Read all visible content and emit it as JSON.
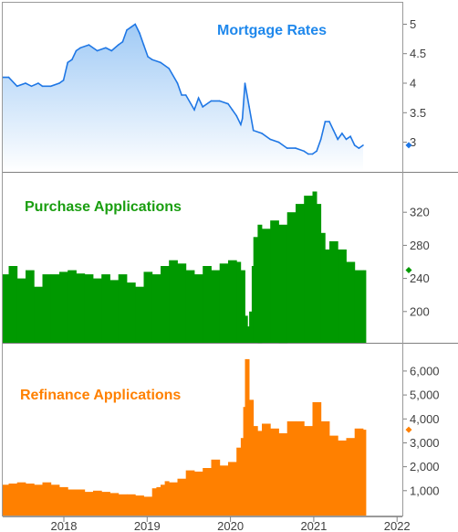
{
  "chart_data": [
    {
      "type": "area",
      "title": "Mortgage Rates",
      "color": "#1f77e5",
      "fill_top": "#9cc8f5",
      "x_start": 2017.33,
      "x_end": 2021.6,
      "ylim": [
        2.7,
        5.1
      ],
      "yticks": [
        3,
        3.5,
        4,
        4.5,
        5
      ],
      "ytick_labels": [
        "3",
        "3.5",
        "4",
        "4.5",
        "5"
      ],
      "latest_marker": 2.95,
      "series": [
        {
          "x": [
            2017.33,
            2017.4,
            2017.5,
            2017.6,
            2017.67,
            2017.75,
            2017.8,
            2017.9,
            2018.0,
            2018.05,
            2018.1,
            2018.15,
            2018.2,
            2018.25,
            2018.35,
            2018.45,
            2018.55,
            2018.62,
            2018.7,
            2018.75,
            2018.8,
            2018.85,
            2018.9,
            2018.95,
            2019.0,
            2019.05,
            2019.1,
            2019.2,
            2019.3,
            2019.4,
            2019.45,
            2019.5,
            2019.6,
            2019.65,
            2019.7,
            2019.8,
            2019.9,
            2020.0,
            2020.05,
            2020.1,
            2020.15,
            2020.17,
            2020.2,
            2020.25,
            2020.3,
            2020.4,
            2020.5,
            2020.6,
            2020.7,
            2020.8,
            2020.9,
            2020.95,
            2021.0,
            2021.05,
            2021.1,
            2021.15,
            2021.2,
            2021.25,
            2021.3,
            2021.35,
            2021.4,
            2021.45,
            2021.5,
            2021.55,
            2021.6
          ],
          "values": [
            4.1,
            4.1,
            3.95,
            4.0,
            3.95,
            4.0,
            3.95,
            3.95,
            4.0,
            4.05,
            4.35,
            4.4,
            4.55,
            4.6,
            4.65,
            4.55,
            4.6,
            4.55,
            4.65,
            4.7,
            4.9,
            4.95,
            5.0,
            4.85,
            4.65,
            4.45,
            4.4,
            4.35,
            4.25,
            4.0,
            3.8,
            3.8,
            3.55,
            3.75,
            3.6,
            3.7,
            3.7,
            3.65,
            3.55,
            3.45,
            3.3,
            3.4,
            4.0,
            3.6,
            3.2,
            3.15,
            3.05,
            3.0,
            2.9,
            2.9,
            2.85,
            2.8,
            2.8,
            2.85,
            3.05,
            3.35,
            3.35,
            3.2,
            3.05,
            3.15,
            3.05,
            3.1,
            2.95,
            2.9,
            2.95
          ]
        }
      ]
    },
    {
      "type": "bar",
      "title": "Purchase Applications",
      "color": "#009900",
      "x_start": 2017.33,
      "x_end": 2021.6,
      "ylim": [
        170,
        350
      ],
      "yticks": [
        200,
        240,
        280,
        320
      ],
      "ytick_labels": [
        "200",
        "240",
        "280",
        "320"
      ],
      "latest_marker": 250,
      "series": [
        {
          "x": [
            2017.33,
            2017.4,
            2017.5,
            2017.6,
            2017.7,
            2017.8,
            2017.9,
            2018.0,
            2018.1,
            2018.2,
            2018.3,
            2018.4,
            2018.5,
            2018.6,
            2018.7,
            2018.8,
            2018.9,
            2019.0,
            2019.1,
            2019.2,
            2019.3,
            2019.4,
            2019.5,
            2019.6,
            2019.7,
            2019.8,
            2019.9,
            2020.0,
            2020.1,
            2020.15,
            2020.2,
            2020.23,
            2020.25,
            2020.28,
            2020.3,
            2020.35,
            2020.4,
            2020.5,
            2020.6,
            2020.7,
            2020.8,
            2020.9,
            2021.0,
            2021.05,
            2021.1,
            2021.15,
            2021.2,
            2021.3,
            2021.4,
            2021.5,
            2021.6
          ],
          "values": [
            245,
            255,
            240,
            250,
            230,
            245,
            245,
            248,
            250,
            246,
            245,
            240,
            245,
            238,
            245,
            235,
            230,
            248,
            245,
            255,
            262,
            258,
            250,
            245,
            255,
            250,
            258,
            262,
            260,
            250,
            195,
            182,
            200,
            255,
            290,
            305,
            300,
            310,
            305,
            320,
            330,
            340,
            345,
            330,
            295,
            275,
            285,
            275,
            260,
            250,
            250
          ]
        }
      ]
    },
    {
      "type": "bar",
      "title": "Refinance Applications",
      "color": "#ff8000",
      "x_start": 2017.33,
      "x_end": 2021.6,
      "ylim": [
        0,
        6800
      ],
      "yticks": [
        1000,
        2000,
        3000,
        4000,
        5000,
        6000
      ],
      "ytick_labels": [
        "1,000",
        "2,000",
        "3,000",
        "4,000",
        "5,000",
        "6,000"
      ],
      "latest_marker": 3550,
      "series": [
        {
          "x": [
            2017.33,
            2017.4,
            2017.5,
            2017.6,
            2017.7,
            2017.8,
            2017.9,
            2018.0,
            2018.1,
            2018.2,
            2018.3,
            2018.4,
            2018.5,
            2018.6,
            2018.7,
            2018.8,
            2018.9,
            2019.0,
            2019.1,
            2019.15,
            2019.2,
            2019.25,
            2019.3,
            2019.4,
            2019.5,
            2019.6,
            2019.7,
            2019.8,
            2019.9,
            2020.0,
            2020.1,
            2020.15,
            2020.18,
            2020.2,
            2020.25,
            2020.3,
            2020.35,
            2020.4,
            2020.5,
            2020.6,
            2020.7,
            2020.8,
            2020.9,
            2021.0,
            2021.1,
            2021.2,
            2021.3,
            2021.4,
            2021.5,
            2021.6
          ],
          "values": [
            1250,
            1300,
            1350,
            1300,
            1250,
            1350,
            1250,
            1150,
            1050,
            1050,
            950,
            1000,
            950,
            900,
            850,
            850,
            800,
            750,
            1100,
            1150,
            1250,
            1400,
            1350,
            1500,
            1850,
            1800,
            1950,
            2300,
            2050,
            2200,
            2800,
            3200,
            4500,
            6500,
            4800,
            3700,
            3500,
            3800,
            3600,
            3400,
            3900,
            3900,
            3700,
            4700,
            3900,
            3300,
            3100,
            3200,
            3600,
            3550
          ]
        }
      ]
    }
  ],
  "x_axis": {
    "ticks": [
      2018,
      2019,
      2020,
      2021,
      2022
    ],
    "tick_labels": [
      "2018",
      "2019",
      "2020",
      "2021",
      "2022"
    ]
  }
}
